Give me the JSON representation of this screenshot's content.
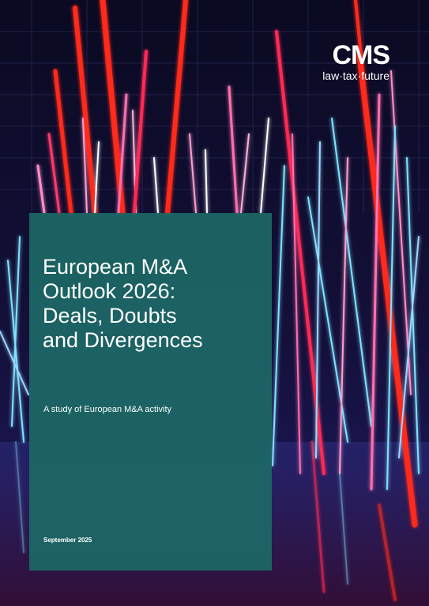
{
  "cover": {
    "title": "European M&A\nOutlook 2026:\nDeals, Doubts\nand Divergences",
    "subtitle": "A study of European M&A activity",
    "date": "September 2025"
  },
  "brand": {
    "logo": "CMS",
    "tagline": "law·tax·future"
  },
  "colors": {
    "panel": "#1c6665",
    "background": "#06061a",
    "neon_red": "#ff2a1a",
    "neon_pink": "#ff6fae",
    "neon_cyan": "#7fe3ff"
  }
}
